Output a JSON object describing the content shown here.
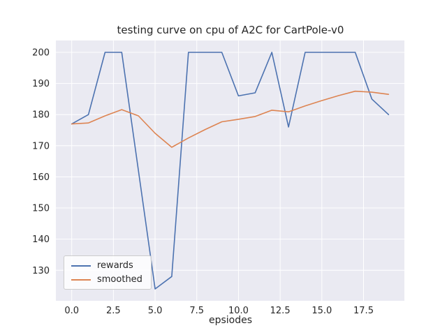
{
  "chart_data": {
    "type": "line",
    "title": "testing curve on cpu of A2C for CartPole-v0",
    "xlabel": "epsiodes",
    "ylabel": "",
    "x": [
      0,
      1,
      2,
      3,
      4,
      5,
      6,
      7,
      8,
      9,
      10,
      11,
      12,
      13,
      14,
      15,
      16,
      17,
      18,
      19
    ],
    "series": [
      {
        "name": "rewards",
        "color": "#4c72b0",
        "values": [
          177,
          180,
          200,
          200,
          162,
          124,
          128,
          200,
          200,
          200,
          186,
          187,
          200,
          176,
          200,
          200,
          200,
          200,
          185,
          180
        ]
      },
      {
        "name": "smoothed",
        "color": "#dd8452",
        "values": [
          177.0,
          177.3,
          179.6,
          181.6,
          179.6,
          174.0,
          169.5,
          172.5,
          175.2,
          177.7,
          178.5,
          179.4,
          181.4,
          180.9,
          182.8,
          184.5,
          186.1,
          187.5,
          187.2,
          186.5
        ]
      }
    ],
    "xlim": [
      -0.95,
      19.95
    ],
    "ylim": [
      120.2,
      203.8
    ],
    "xticks": [
      0.0,
      2.5,
      5.0,
      7.5,
      10.0,
      12.5,
      15.0,
      17.5
    ],
    "yticks": [
      130,
      140,
      150,
      160,
      170,
      180,
      190,
      200
    ],
    "grid": true,
    "legend_position": "lower left",
    "plot_bg": "#eaeaf2",
    "grid_color": "#ffffff",
    "text_color": "#262626"
  }
}
